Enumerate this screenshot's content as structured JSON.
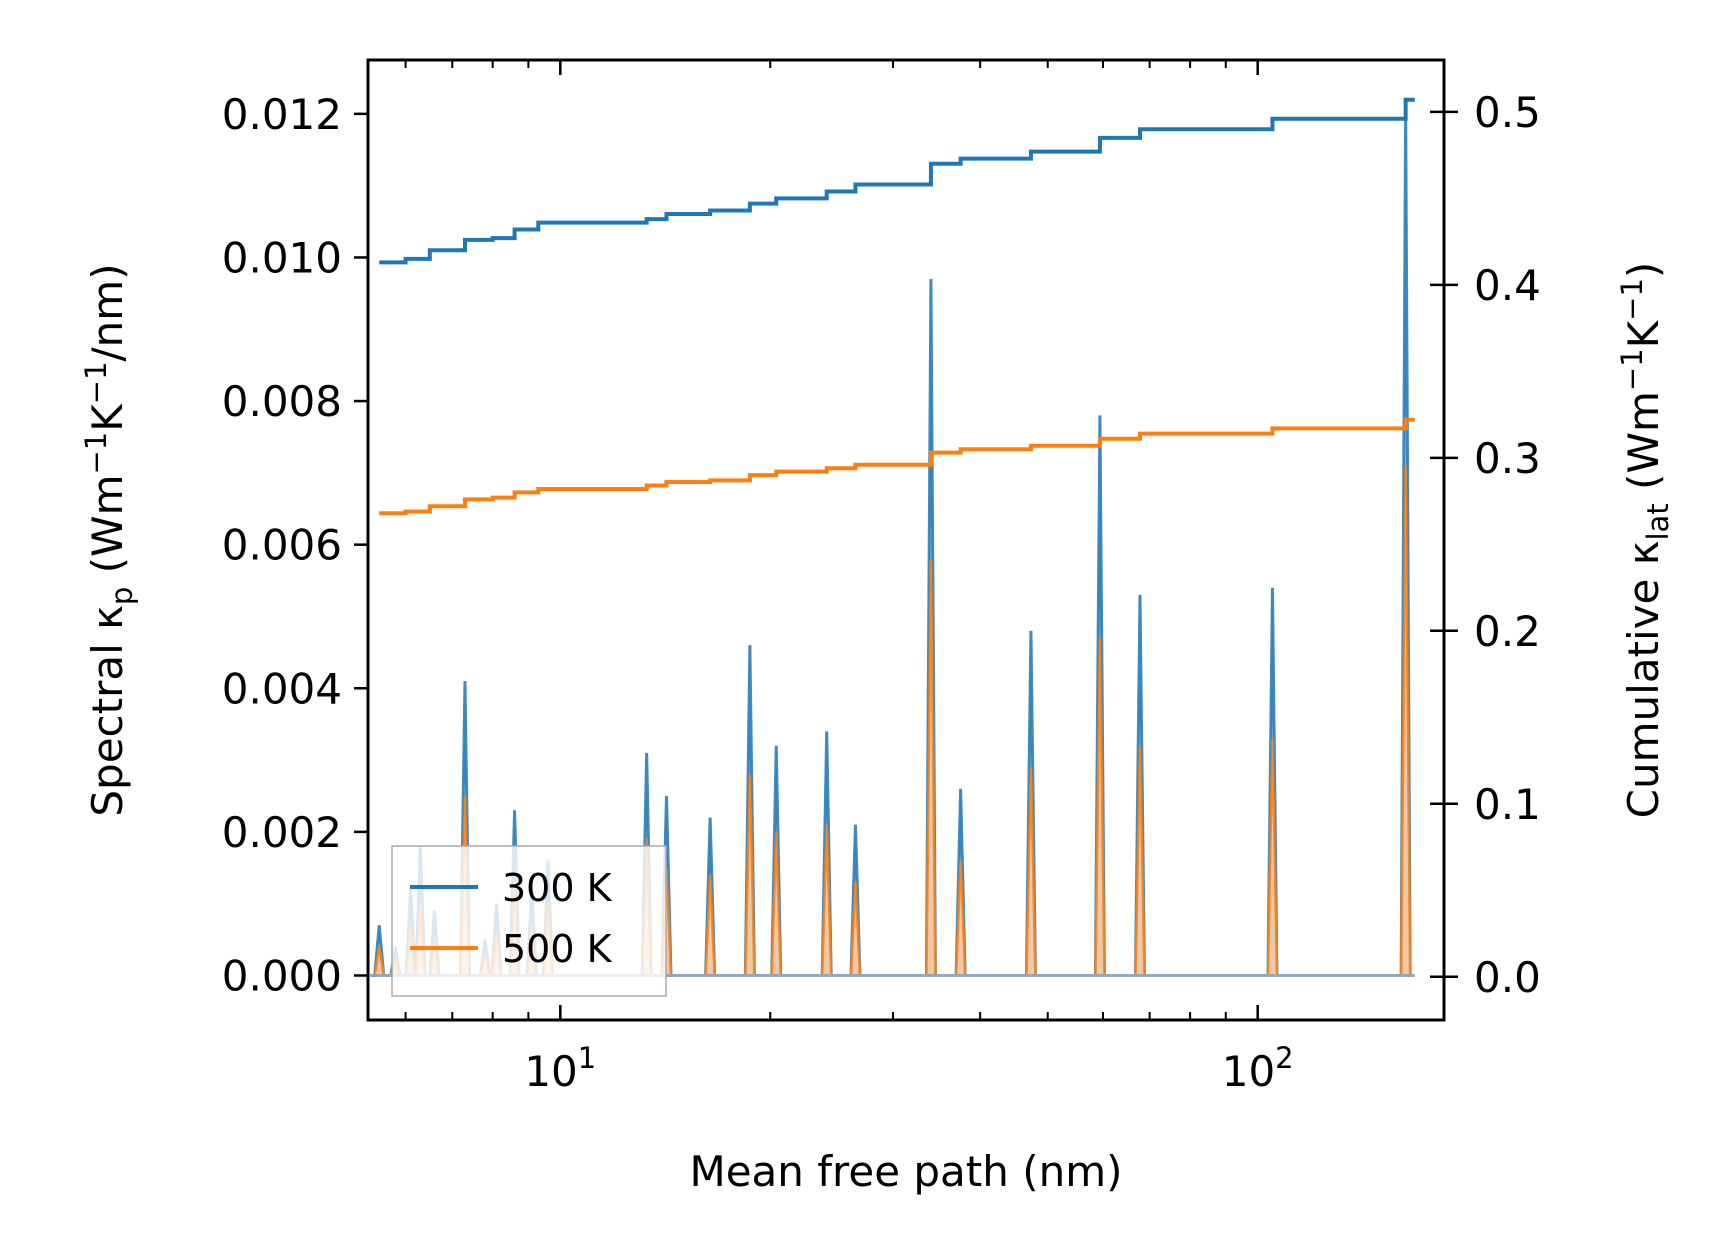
{
  "chart_data": {
    "type": "line",
    "title": "",
    "xlabel": "Mean free path (nm)",
    "ylabel_left": {
      "prefix": "Spectral κ",
      "sub": "p",
      "mid": " (Wm",
      "sup1": "−1",
      "mid2": "K",
      "sup2": "−1",
      "suffix": "/nm)"
    },
    "ylabel_right": {
      "prefix": "Cumulative κ",
      "sub": "lat",
      "mid": " (Wm",
      "sup1": "−1",
      "mid2": "K",
      "sup2": "−1",
      "suffix": ")"
    },
    "xscale": "log",
    "xlim": [
      5.3,
      185
    ],
    "ylim_left": [
      -0.00062,
      0.01275
    ],
    "ylim_right": [
      -0.025,
      0.53
    ],
    "x_ticks": [
      {
        "value": 10,
        "base": "10",
        "exp": "1"
      },
      {
        "value": 100,
        "base": "10",
        "exp": "2"
      }
    ],
    "y_ticks_left": [
      {
        "value": 0.0,
        "label": "0.000"
      },
      {
        "value": 0.002,
        "label": "0.002"
      },
      {
        "value": 0.004,
        "label": "0.004"
      },
      {
        "value": 0.006,
        "label": "0.006"
      },
      {
        "value": 0.008,
        "label": "0.008"
      },
      {
        "value": 0.01,
        "label": "0.010"
      },
      {
        "value": 0.012,
        "label": "0.012"
      }
    ],
    "y_ticks_right": [
      {
        "value": 0.0,
        "label": "0.0"
      },
      {
        "value": 0.1,
        "label": "0.1"
      },
      {
        "value": 0.2,
        "label": "0.2"
      },
      {
        "value": 0.3,
        "label": "0.3"
      },
      {
        "value": 0.4,
        "label": "0.4"
      },
      {
        "value": 0.5,
        "label": "0.5"
      }
    ],
    "legend": {
      "position": "lower-left"
    },
    "series": [
      {
        "name": "300 K",
        "color": "#1f77b4",
        "fill_color": "#a6c8e3",
        "spectral_peaks": [
          [
            5.5,
            0.0007
          ],
          [
            5.8,
            0.0004
          ],
          [
            6.1,
            0.0012
          ],
          [
            6.3,
            0.0018
          ],
          [
            6.6,
            0.0009
          ],
          [
            7.3,
            0.0041
          ],
          [
            7.8,
            0.0005
          ],
          [
            8.1,
            0.001
          ],
          [
            8.6,
            0.0023
          ],
          [
            9.1,
            0.0012
          ],
          [
            9.6,
            0.0016
          ],
          [
            13.3,
            0.0031
          ],
          [
            14.2,
            0.0025
          ],
          [
            16.4,
            0.0022
          ],
          [
            18.7,
            0.0046
          ],
          [
            20.4,
            0.0032
          ],
          [
            24.1,
            0.0034
          ],
          [
            26.5,
            0.0021
          ],
          [
            34.0,
            0.0097
          ],
          [
            37.5,
            0.0026
          ],
          [
            47.3,
            0.0048
          ],
          [
            59.4,
            0.0078
          ],
          [
            67.8,
            0.0053
          ],
          [
            105.0,
            0.0054
          ],
          [
            163.0,
            0.0121
          ]
        ],
        "cumulative": [
          [
            5.5,
            0.413
          ],
          [
            6.0,
            0.415
          ],
          [
            6.5,
            0.42
          ],
          [
            7.0,
            0.42
          ],
          [
            7.3,
            0.426
          ],
          [
            8.0,
            0.427
          ],
          [
            8.6,
            0.432
          ],
          [
            9.3,
            0.436
          ],
          [
            10.0,
            0.436
          ],
          [
            11.5,
            0.436
          ],
          [
            12.5,
            0.436
          ],
          [
            13.3,
            0.438
          ],
          [
            14.2,
            0.441
          ],
          [
            16.4,
            0.443
          ],
          [
            18.7,
            0.447
          ],
          [
            20.4,
            0.45
          ],
          [
            24.1,
            0.454
          ],
          [
            26.5,
            0.458
          ],
          [
            34.0,
            0.47
          ],
          [
            37.5,
            0.473
          ],
          [
            47.3,
            0.477
          ],
          [
            59.4,
            0.485
          ],
          [
            67.8,
            0.49
          ],
          [
            105.0,
            0.496
          ],
          [
            160.0,
            0.496
          ],
          [
            163.0,
            0.507
          ],
          [
            168.0,
            0.507
          ]
        ]
      },
      {
        "name": "500 K",
        "color": "#ff7f0e",
        "fill_color": "#f9c79c",
        "spectral_peaks": [
          [
            5.5,
            0.0004
          ],
          [
            5.8,
            0.0002
          ],
          [
            6.1,
            0.0007
          ],
          [
            6.3,
            0.001
          ],
          [
            6.6,
            0.0005
          ],
          [
            7.3,
            0.0025
          ],
          [
            7.8,
            0.0003
          ],
          [
            8.1,
            0.0006
          ],
          [
            8.6,
            0.0014
          ],
          [
            9.1,
            0.0007
          ],
          [
            9.6,
            0.001
          ],
          [
            13.3,
            0.0019
          ],
          [
            14.2,
            0.0015
          ],
          [
            16.4,
            0.0014
          ],
          [
            18.7,
            0.0028
          ],
          [
            20.4,
            0.002
          ],
          [
            24.1,
            0.0021
          ],
          [
            26.5,
            0.0013
          ],
          [
            34.0,
            0.0058
          ],
          [
            37.5,
            0.0016
          ],
          [
            47.3,
            0.0029
          ],
          [
            59.4,
            0.0047
          ],
          [
            67.8,
            0.0032
          ],
          [
            105.0,
            0.0033
          ],
          [
            163.0,
            0.0071
          ]
        ],
        "cumulative": [
          [
            5.5,
            0.268
          ],
          [
            6.0,
            0.269
          ],
          [
            6.5,
            0.272
          ],
          [
            7.0,
            0.272
          ],
          [
            7.3,
            0.276
          ],
          [
            8.0,
            0.277
          ],
          [
            8.6,
            0.28
          ],
          [
            9.3,
            0.282
          ],
          [
            10.0,
            0.282
          ],
          [
            11.5,
            0.282
          ],
          [
            12.5,
            0.282
          ],
          [
            13.3,
            0.284
          ],
          [
            14.2,
            0.286
          ],
          [
            16.4,
            0.287
          ],
          [
            18.7,
            0.29
          ],
          [
            20.4,
            0.292
          ],
          [
            24.1,
            0.294
          ],
          [
            26.5,
            0.296
          ],
          [
            34.0,
            0.303
          ],
          [
            37.5,
            0.305
          ],
          [
            47.3,
            0.307
          ],
          [
            59.4,
            0.311
          ],
          [
            67.8,
            0.314
          ],
          [
            105.0,
            0.317
          ],
          [
            160.0,
            0.317
          ],
          [
            163.0,
            0.322
          ],
          [
            168.0,
            0.322
          ]
        ]
      }
    ]
  }
}
